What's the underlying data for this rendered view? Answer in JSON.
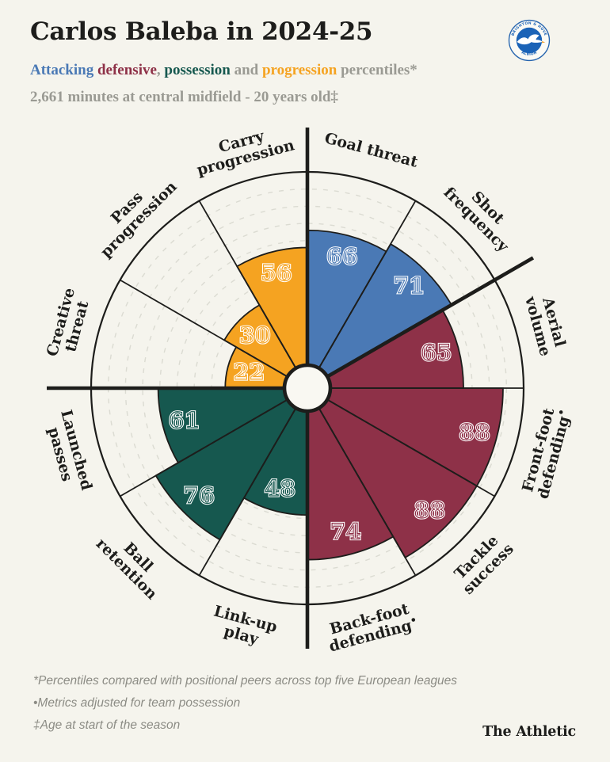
{
  "header": {
    "title": "Carlos Baleba in 2024-25",
    "subtitle_parts": [
      {
        "text": "Attacking ",
        "color": "#4A79B5"
      },
      {
        "text": "defensive",
        "color": "#8E3148"
      },
      {
        "text": ", ",
        "color": "#9A9A93"
      },
      {
        "text": "possession",
        "color": "#16584F"
      },
      {
        "text": " and ",
        "color": "#9A9A93"
      },
      {
        "text": "progression",
        "color": "#F5A321"
      },
      {
        "text": " percentiles*",
        "color": "#9A9A93"
      }
    ],
    "meta": "2,661 minutes at central midfield - 20 years old‡"
  },
  "club_badge": {
    "club": "Brighton & Hove Albion",
    "top_text": "BRIGHTON & HOVE",
    "bottom_text": "ALBION",
    "blue": "#1B63B7",
    "beak_orange": "#F0A030"
  },
  "chart_data": {
    "type": "pizza (polar percentile bar)",
    "scale": {
      "min": 0,
      "max": 100,
      "gridline_step": 10,
      "grid_style": "dashed"
    },
    "groups": {
      "attacking": {
        "color": "#4A79B5"
      },
      "defensive": {
        "color": "#8E3148"
      },
      "possession": {
        "color": "#16584F"
      },
      "progression": {
        "color": "#F5A321"
      }
    },
    "metrics": [
      {
        "label": "Goal threat",
        "lines": [
          "Goal threat"
        ],
        "value": 66,
        "group": "attacking"
      },
      {
        "label": "Shot frequency",
        "lines": [
          "Shot",
          "frequency"
        ],
        "value": 71,
        "group": "attacking"
      },
      {
        "label": "Aerial volume",
        "lines": [
          "Aerial",
          "volume"
        ],
        "value": 65,
        "group": "defensive"
      },
      {
        "label": "Front-foot defending•",
        "lines": [
          "Front-foot",
          "defending•"
        ],
        "value": 88,
        "group": "defensive"
      },
      {
        "label": "Tackle success",
        "lines": [
          "Tackle",
          "success"
        ],
        "value": 88,
        "group": "defensive"
      },
      {
        "label": "Back-foot defending•",
        "lines": [
          "Back-foot",
          "defending•"
        ],
        "value": 74,
        "group": "defensive"
      },
      {
        "label": "Link-up play",
        "lines": [
          "Link-up",
          "play"
        ],
        "value": 48,
        "group": "possession"
      },
      {
        "label": "Ball retention",
        "lines": [
          "Ball",
          "retention"
        ],
        "value": 76,
        "group": "possession"
      },
      {
        "label": "Launched passes",
        "lines": [
          "Launched",
          "passes"
        ],
        "value": 61,
        "group": "possession"
      },
      {
        "label": "Creative threat",
        "lines": [
          "Creative",
          "threat"
        ],
        "value": 22,
        "group": "progression"
      },
      {
        "label": "Pass progression",
        "lines": [
          "Pass",
          "progression"
        ],
        "value": 30,
        "group": "progression"
      },
      {
        "label": "Carry progression",
        "lines": [
          "Carry",
          "progression"
        ],
        "value": 56,
        "group": "progression"
      }
    ],
    "thick_divider_angles_deg": [
      0,
      60,
      180,
      270
    ],
    "colors": {
      "background": "#F5F4ED",
      "ink": "#1D1D1B",
      "gridline": "#DBDBD2",
      "hub_fill": "#F9F8F2",
      "number_outline": "#FFFFFF"
    }
  },
  "footnotes": [
    "*Percentiles compared with positional peers across top five European leagues",
    "•Metrics adjusted for team possession",
    "‡Age at start of the season"
  ],
  "brand": "The Athletic"
}
